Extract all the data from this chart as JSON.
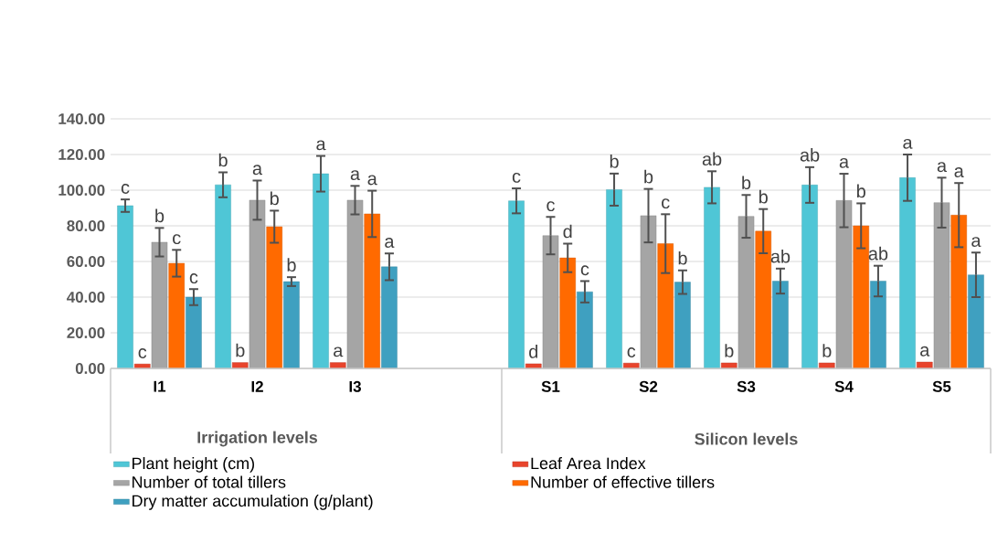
{
  "chart_data": {
    "type": "bar",
    "categories": [
      "I1",
      "I2",
      "I3",
      null,
      "S1",
      "S2",
      "S3",
      "S4",
      "S5"
    ],
    "series": [
      {
        "name": "Plant height (cm)",
        "color": "#4fc6d6",
        "values": [
          91.3,
          103,
          109.2,
          null,
          94,
          100.3,
          101.6,
          102.9,
          107
        ],
        "errors": [
          3.5,
          7,
          10,
          null,
          7,
          9,
          9,
          10,
          13
        ],
        "value_labels": [
          "c",
          "b",
          "a",
          null,
          "c",
          "b",
          "ab",
          "ab",
          "a"
        ]
      },
      {
        "name": "Leaf Area Index",
        "color": "#e8442c",
        "values": [
          2.5,
          3.3,
          3.3,
          null,
          2.6,
          3.0,
          3.1,
          3.1,
          3.6
        ],
        "value_labels": [
          "c",
          "b",
          "a",
          null,
          "d",
          "c",
          "b",
          "b",
          "a"
        ]
      },
      {
        "name": "Number of total tillers",
        "color": "#a5a5a5",
        "values": [
          70.8,
          94.4,
          94.4,
          null,
          74.5,
          85.7,
          85.3,
          94.2,
          93
        ],
        "errors": [
          8,
          11,
          8,
          null,
          10.5,
          15,
          12,
          15,
          14
        ],
        "value_labels": [
          "b",
          "a",
          "a",
          null,
          "c",
          "b",
          "b",
          "a",
          "a"
        ]
      },
      {
        "name": "Number of effective tillers",
        "color": "#ff6a00",
        "values": [
          59,
          79.5,
          86.7,
          null,
          62,
          70,
          77,
          80,
          86
        ],
        "errors": [
          7.5,
          9,
          13,
          null,
          8,
          16.5,
          12.4,
          12.6,
          18
        ],
        "value_labels": [
          "c",
          "b",
          "a",
          null,
          "d",
          "c",
          "b",
          "b",
          "a"
        ]
      },
      {
        "name": "Dry matter accumulation (g/plant)",
        "color": "#3fa0c0",
        "values": [
          40,
          48.7,
          57,
          null,
          43,
          48.4,
          49,
          49,
          52.5
        ],
        "errors": [
          4.5,
          2.5,
          7.5,
          null,
          6,
          6.6,
          7,
          8.6,
          12.5
        ],
        "value_labels": [
          "c",
          "b",
          "a",
          null,
          "c",
          "b",
          "ab",
          "ab",
          "a"
        ]
      }
    ],
    "ylim": [
      0,
      140
    ],
    "yticks": [
      {
        "value": 0,
        "label": "0.00"
      },
      {
        "value": 20,
        "label": "20.00"
      },
      {
        "value": 40,
        "label": "40.00"
      },
      {
        "value": 60,
        "label": "60.00"
      },
      {
        "value": 80,
        "label": "80.00"
      },
      {
        "value": 100,
        "label": "100.00"
      },
      {
        "value": 120,
        "label": "120.00"
      },
      {
        "value": 140,
        "label": "140.00"
      }
    ],
    "annotations": [
      "Irrigation levels",
      "Silicon levels"
    ],
    "grid": "y",
    "legend": "bottom"
  }
}
